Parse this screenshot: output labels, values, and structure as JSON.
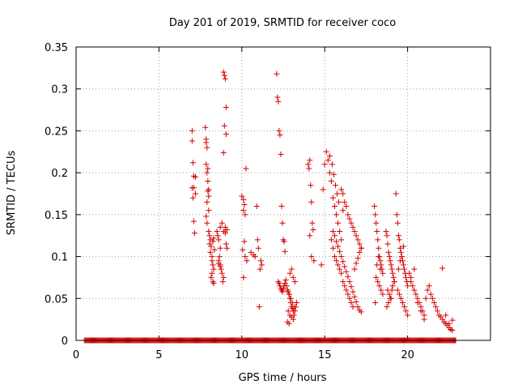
{
  "chart_data": {
    "type": "scatter",
    "title": "Day 201 of 2019, SRMTID for receiver coco",
    "xlabel": "GPS time / hours",
    "ylabel": "SRMTID / TECUs",
    "xlim": [
      0,
      25
    ],
    "ylim": [
      0,
      0.35
    ],
    "xticks": [
      0,
      5,
      10,
      15,
      20
    ],
    "yticks": [
      0,
      0.05,
      0.1,
      0.15,
      0.2,
      0.25,
      0.3,
      0.35
    ],
    "xtick_labels": [
      "0",
      "5",
      "10",
      "15",
      "20"
    ],
    "ytick_labels": [
      "0",
      "0.05",
      "0.1",
      "0.15",
      "0.2",
      "0.25",
      "0.3",
      "0.35"
    ],
    "grid": true,
    "marker": "plus",
    "color": "#d40000",
    "zero_band": {
      "x_start": 0.5,
      "x_end": 22.9,
      "step": 0.05,
      "y": 0
    },
    "series": [
      {
        "name": "SRMTID",
        "x": [
          7.0,
          7.0,
          7.05,
          7.1,
          7.0,
          7.05,
          7.1,
          7.15,
          7.2,
          7.1,
          7.2,
          7.8,
          7.85,
          7.9,
          7.85,
          7.9,
          7.95,
          8.0,
          7.9,
          8.0,
          7.85,
          7.9,
          8.0,
          8.05,
          8.1,
          7.95,
          8.0,
          7.85,
          7.95,
          8.05,
          8.1,
          8.2,
          8.25,
          8.3,
          8.2,
          8.15,
          8.25,
          8.3,
          8.2,
          8.15,
          8.25,
          8.3,
          8.35,
          8.5,
          8.55,
          8.6,
          8.7,
          8.65,
          8.6,
          8.7,
          8.75,
          8.8,
          8.9,
          8.85,
          8.7,
          8.8,
          8.9,
          8.6,
          8.7,
          8.9,
          8.95,
          9.0,
          9.05,
          8.95,
          9.05,
          8.9,
          9.0,
          9.1,
          9.0,
          9.05,
          9.1,
          10.0,
          10.1,
          10.15,
          10.1,
          10.2,
          10.15,
          10.05,
          10.2,
          10.1,
          10.3,
          10.25,
          10.55,
          10.7,
          10.8,
          10.9,
          10.95,
          11.0,
          11.05,
          11.1,
          11.15,
          11.2,
          12.1,
          12.15,
          12.2,
          12.25,
          12.3,
          12.35,
          12.4,
          12.45,
          12.5,
          12.55,
          12.6,
          12.2,
          12.25,
          12.3,
          12.35,
          12.4,
          12.45,
          12.5,
          12.55,
          12.6,
          12.65,
          12.7,
          12.75,
          12.8,
          12.85,
          12.9,
          12.95,
          13.0,
          13.05,
          13.1,
          13.15,
          13.2,
          13.25,
          13.3,
          12.9,
          13.0,
          13.1,
          13.2,
          12.85,
          12.95,
          13.05,
          13.15,
          12.8,
          12.9,
          13.0,
          13.1,
          12.75,
          12.85,
          14.0,
          14.05,
          14.1,
          14.15,
          14.2,
          14.25,
          14.3,
          14.1,
          14.2,
          14.35,
          14.8,
          14.9,
          15.0,
          15.1,
          15.2,
          15.3,
          15.4,
          15.5,
          15.6,
          15.7,
          15.8,
          15.9,
          16.0,
          15.3,
          15.45,
          15.55,
          15.65,
          15.75,
          15.85,
          16.1,
          15.4,
          15.5,
          15.6,
          15.7,
          15.8,
          15.9,
          16.0,
          16.1,
          16.2,
          16.3,
          16.4,
          16.5,
          16.6,
          16.7,
          16.8,
          16.9,
          17.0,
          17.1,
          17.2,
          15.5,
          15.6,
          15.7,
          15.8,
          15.9,
          16.0,
          16.1,
          16.2,
          16.3,
          16.4,
          16.5,
          16.6,
          16.7,
          16.8,
          16.9,
          17.0,
          17.1,
          17.2,
          16.0,
          16.2,
          16.4,
          16.6,
          16.8,
          17.0,
          17.2,
          16.1,
          16.3,
          16.5,
          16.7,
          16.9,
          17.1,
          18.0,
          18.05,
          18.1,
          18.15,
          18.2,
          18.25,
          18.3,
          18.35,
          18.4,
          18.45,
          18.5,
          18.1,
          18.2,
          18.3,
          18.4,
          18.5,
          18.05,
          18.15,
          18.25,
          18.35,
          18.7,
          18.75,
          18.8,
          18.85,
          18.9,
          18.95,
          19.0,
          19.05,
          19.1,
          19.15,
          19.2,
          18.8,
          18.9,
          19.0,
          19.1,
          19.2,
          18.75,
          18.85,
          18.95,
          19.05,
          19.3,
          19.35,
          19.4,
          19.45,
          19.5,
          19.55,
          19.6,
          19.65,
          19.7,
          19.75,
          19.8,
          19.85,
          19.9,
          19.95,
          20.0,
          19.4,
          19.5,
          19.6,
          19.7,
          19.8,
          19.9,
          20.0,
          19.45,
          19.55,
          19.65,
          19.75,
          20.1,
          20.2,
          20.3,
          20.4,
          20.5,
          20.6,
          20.7,
          20.8,
          20.9,
          21.0,
          21.1,
          21.2,
          21.3,
          21.4,
          20.2,
          20.4,
          20.6,
          20.8,
          21.0,
          21.5,
          21.6,
          21.7,
          21.8,
          21.9,
          22.0,
          22.1,
          22.2,
          22.3,
          22.4,
          22.5,
          22.6,
          22.7,
          22.1,
          22.3,
          22.5,
          22.7
        ],
        "y": [
          0.25,
          0.238,
          0.212,
          0.196,
          0.182,
          0.17,
          0.142,
          0.128,
          0.195,
          0.182,
          0.175,
          0.254,
          0.24,
          0.23,
          0.21,
          0.2,
          0.19,
          0.18,
          0.165,
          0.155,
          0.148,
          0.14,
          0.13,
          0.125,
          0.12,
          0.178,
          0.172,
          0.236,
          0.205,
          0.115,
          0.105,
          0.095,
          0.09,
          0.085,
          0.08,
          0.075,
          0.07,
          0.068,
          0.1,
          0.112,
          0.118,
          0.122,
          0.108,
          0.13,
          0.125,
          0.12,
          0.11,
          0.1,
          0.095,
          0.09,
          0.085,
          0.08,
          0.075,
          0.07,
          0.135,
          0.14,
          0.13,
          0.092,
          0.088,
          0.32,
          0.316,
          0.312,
          0.278,
          0.256,
          0.246,
          0.224,
          0.135,
          0.132,
          0.128,
          0.115,
          0.11,
          0.172,
          0.168,
          0.162,
          0.155,
          0.15,
          0.118,
          0.108,
          0.1,
          0.075,
          0.095,
          0.205,
          0.105,
          0.102,
          0.1,
          0.16,
          0.12,
          0.11,
          0.04,
          0.085,
          0.095,
          0.09,
          0.318,
          0.29,
          0.285,
          0.25,
          0.245,
          0.222,
          0.16,
          0.14,
          0.12,
          0.118,
          0.106,
          0.07,
          0.068,
          0.065,
          0.062,
          0.06,
          0.058,
          0.062,
          0.065,
          0.068,
          0.072,
          0.065,
          0.06,
          0.058,
          0.055,
          0.05,
          0.045,
          0.04,
          0.038,
          0.035,
          0.03,
          0.035,
          0.04,
          0.045,
          0.08,
          0.085,
          0.075,
          0.07,
          0.055,
          0.05,
          0.045,
          0.04,
          0.035,
          0.03,
          0.028,
          0.025,
          0.022,
          0.02,
          0.21,
          0.205,
          0.215,
          0.185,
          0.165,
          0.14,
          0.132,
          0.125,
          0.1,
          0.095,
          0.09,
          0.18,
          0.21,
          0.225,
          0.215,
          0.2,
          0.19,
          0.17,
          0.16,
          0.15,
          0.14,
          0.13,
          0.12,
          0.22,
          0.21,
          0.198,
          0.185,
          0.175,
          0.165,
          0.155,
          0.12,
          0.11,
          0.1,
          0.095,
          0.09,
          0.085,
          0.08,
          0.07,
          0.065,
          0.06,
          0.055,
          0.05,
          0.045,
          0.04,
          0.085,
          0.092,
          0.098,
          0.105,
          0.11,
          0.13,
          0.125,
          0.118,
          0.112,
          0.106,
          0.1,
          0.094,
          0.088,
          0.082,
          0.076,
          0.07,
          0.064,
          0.058,
          0.052,
          0.046,
          0.04,
          0.036,
          0.034,
          0.18,
          0.165,
          0.15,
          0.14,
          0.13,
          0.12,
          0.11,
          0.175,
          0.16,
          0.145,
          0.135,
          0.125,
          0.115,
          0.16,
          0.15,
          0.14,
          0.13,
          0.12,
          0.11,
          0.1,
          0.095,
          0.09,
          0.085,
          0.08,
          0.075,
          0.07,
          0.065,
          0.06,
          0.055,
          0.045,
          0.09,
          0.1,
          0.085,
          0.13,
          0.125,
          0.115,
          0.105,
          0.1,
          0.095,
          0.09,
          0.085,
          0.08,
          0.075,
          0.07,
          0.06,
          0.055,
          0.05,
          0.065,
          0.07,
          0.04,
          0.045,
          0.05,
          0.06,
          0.175,
          0.15,
          0.14,
          0.125,
          0.12,
          0.11,
          0.105,
          0.1,
          0.095,
          0.09,
          0.085,
          0.08,
          0.075,
          0.07,
          0.065,
          0.06,
          0.055,
          0.05,
          0.045,
          0.04,
          0.035,
          0.03,
          0.085,
          0.095,
          0.1,
          0.112,
          0.08,
          0.07,
          0.065,
          0.06,
          0.055,
          0.05,
          0.045,
          0.04,
          0.035,
          0.03,
          0.05,
          0.06,
          0.065,
          0.055,
          0.075,
          0.085,
          0.045,
          0.035,
          0.025,
          0.05,
          0.045,
          0.04,
          0.035,
          0.03,
          0.028,
          0.025,
          0.022,
          0.02,
          0.018,
          0.015,
          0.013,
          0.012,
          0.086,
          0.03,
          0.02,
          0.024
        ]
      }
    ]
  }
}
